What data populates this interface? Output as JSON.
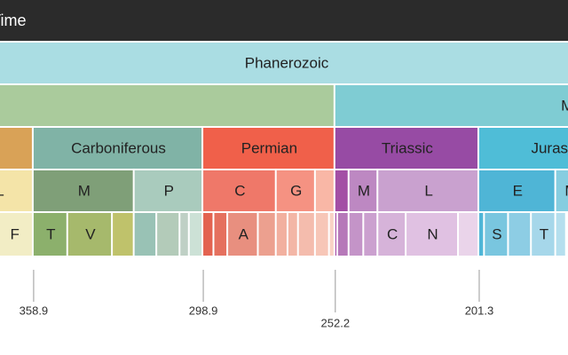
{
  "chart_data": {
    "type": "icicle",
    "xlim": [
      370.8,
      169.9
    ],
    "xticks": [
      358.9,
      298.9,
      252.2,
      201.3
    ],
    "rows": [
      [
        {
          "label": "Geologic Time",
          "start": 4600,
          "end": 0,
          "color": "#2b2b2b"
        }
      ],
      [
        {
          "label": "Phanerozoic",
          "start": 538.8,
          "end": 0,
          "color": "#aadde3"
        }
      ],
      [
        {
          "label": null,
          "start": 538.8,
          "end": 252.2,
          "color": "#aacb9c"
        },
        {
          "label": "Mesozoic",
          "start": 252.2,
          "end": 66,
          "color": "#7fccd3"
        }
      ],
      [
        {
          "label": null,
          "start": 419.2,
          "end": 358.9,
          "color": "#d9a257"
        },
        {
          "label": "Carboniferous",
          "start": 358.9,
          "end": 298.9,
          "color": "#80b3a6"
        },
        {
          "label": "Permian",
          "start": 298.9,
          "end": 252.2,
          "color": "#f0604a"
        },
        {
          "label": "Triassic",
          "start": 252.2,
          "end": 201.3,
          "color": "#974ba4"
        },
        {
          "label": "Jurassic",
          "start": 201.3,
          "end": 145,
          "color": "#4fbdd7"
        }
      ],
      [
        {
          "label": "L",
          "start": 382.7,
          "end": 358.9,
          "color": "#f4e4a8"
        },
        {
          "label": "M",
          "start": 358.9,
          "end": 323.2,
          "color": "#7f9f78"
        },
        {
          "label": "P",
          "start": 323.2,
          "end": 298.9,
          "color": "#a9cbbd"
        },
        {
          "label": "C",
          "start": 298.9,
          "end": 272.95,
          "color": "#ef7869"
        },
        {
          "label": "G",
          "start": 272.95,
          "end": 259.1,
          "color": "#f59282"
        },
        {
          "label": null,
          "start": 259.1,
          "end": 252.2,
          "color": "#f9b7a6"
        },
        {
          "label": null,
          "start": 252.2,
          "end": 247.2,
          "color": "#a34fa5"
        },
        {
          "label": "M",
          "start": 247.2,
          "end": 237,
          "color": "#bd88c2"
        },
        {
          "label": "L",
          "start": 237,
          "end": 201.3,
          "color": "#c9a1cf"
        },
        {
          "label": "E",
          "start": 201.3,
          "end": 174.1,
          "color": "#4fb5d6"
        },
        {
          "label": "M",
          "start": 174.1,
          "end": 163.5,
          "color": "#86cde0"
        }
      ],
      [
        {
          "label": "F",
          "start": 372.2,
          "end": 358.9,
          "color": "#f2edc5"
        },
        {
          "label": "T",
          "start": 358.9,
          "end": 346.7,
          "color": "#8cb06c"
        },
        {
          "label": "V",
          "start": 346.7,
          "end": 330.9,
          "color": "#a6b96c"
        },
        {
          "label": null,
          "start": 330.9,
          "end": 323.2,
          "color": "#bfc26b"
        },
        {
          "label": null,
          "start": 323.2,
          "end": 315.2,
          "color": "#99c2b5"
        },
        {
          "label": null,
          "start": 315.2,
          "end": 307,
          "color": "#b3cbb9"
        },
        {
          "label": null,
          "start": 307,
          "end": 303.7,
          "color": "#bfd0c5"
        },
        {
          "label": null,
          "start": 303.7,
          "end": 298.9,
          "color": "#cce1d6"
        },
        {
          "label": null,
          "start": 298.9,
          "end": 295,
          "color": "#e36350"
        },
        {
          "label": null,
          "start": 295,
          "end": 290.1,
          "color": "#e5705e"
        },
        {
          "label": "A",
          "start": 290.1,
          "end": 279.3,
          "color": "#e88f7f"
        },
        {
          "label": null,
          "start": 279.3,
          "end": 272.95,
          "color": "#eca08f"
        },
        {
          "label": null,
          "start": 272.95,
          "end": 268.8,
          "color": "#f2b09f"
        },
        {
          "label": null,
          "start": 268.8,
          "end": 265.1,
          "color": "#f3b6a6"
        },
        {
          "label": null,
          "start": 265.1,
          "end": 259.1,
          "color": "#f4bcad"
        },
        {
          "label": null,
          "start": 259.1,
          "end": 254.14,
          "color": "#f7c6b7"
        },
        {
          "label": null,
          "start": 254.14,
          "end": 252.2,
          "color": "#f9d2c5"
        },
        {
          "label": null,
          "start": 252.2,
          "end": 251.2,
          "color": "#a850a8"
        },
        {
          "label": null,
          "start": 251.2,
          "end": 247.2,
          "color": "#b678b9"
        },
        {
          "label": null,
          "start": 247.2,
          "end": 242,
          "color": "#c494c8"
        },
        {
          "label": null,
          "start": 242,
          "end": 237,
          "color": "#cba0cf"
        },
        {
          "label": "C",
          "start": 237,
          "end": 227,
          "color": "#d6b3d9"
        },
        {
          "label": "N",
          "start": 227,
          "end": 208.5,
          "color": "#e0c1e2"
        },
        {
          "label": null,
          "start": 208.5,
          "end": 201.3,
          "color": "#ead4ea"
        },
        {
          "label": null,
          "start": 201.3,
          "end": 199.3,
          "color": "#4fb6d7"
        },
        {
          "label": "S",
          "start": 199.3,
          "end": 190.8,
          "color": "#79c6df"
        },
        {
          "label": null,
          "start": 190.8,
          "end": 182.7,
          "color": "#8dcde4"
        },
        {
          "label": "T",
          "start": 182.7,
          "end": 174.1,
          "color": "#a6d7ea"
        },
        {
          "label": null,
          "start": 174.1,
          "end": 170.3,
          "color": "#b5dfee"
        }
      ]
    ]
  }
}
